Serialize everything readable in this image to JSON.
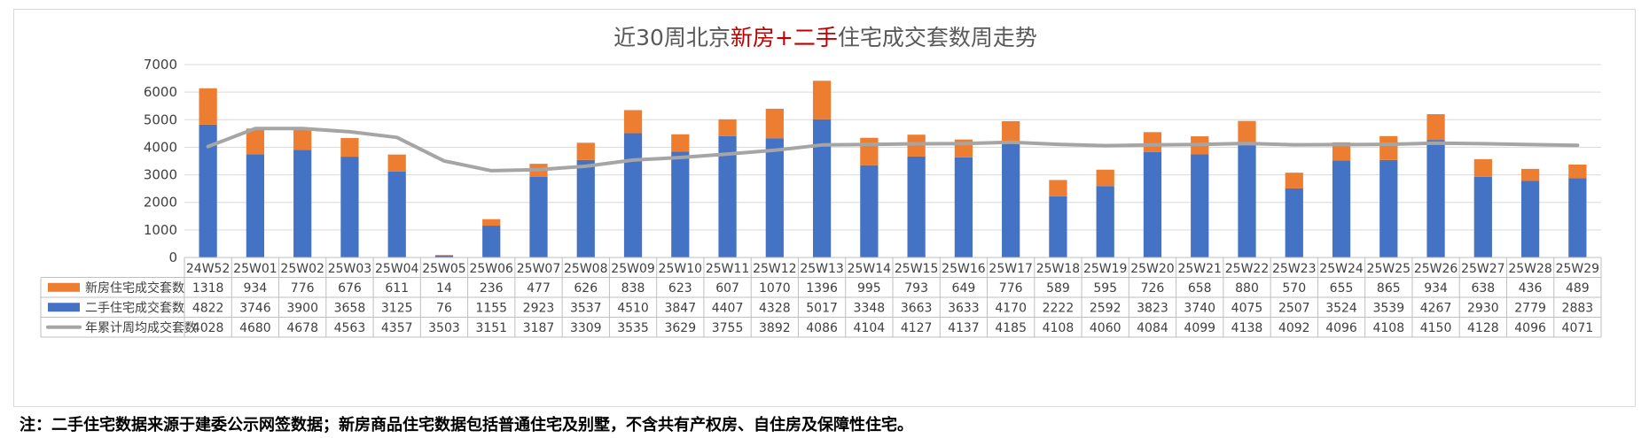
{
  "title": {
    "part1": "近30周北京",
    "part2": "新房",
    "part3": "+",
    "part4": "二手",
    "part5": "住宅成交套数周走势"
  },
  "footnote": "注：二手住宅数据来源于建委公示网签数据；新房商品住宅数据包括普通住宅及别墅，不含共有产权房、自住房及保障性住宅。",
  "colors": {
    "new_home": "#ed7d31",
    "second_hand": "#4472c4",
    "avg_line": "#a5a5a5",
    "title_accent": "#c00000"
  },
  "chart_data": {
    "type": "bar",
    "stacked": true,
    "categories": [
      "24W52",
      "25W01",
      "25W02",
      "25W03",
      "25W04",
      "25W05",
      "25W06",
      "25W07",
      "25W08",
      "25W09",
      "25W10",
      "25W11",
      "25W12",
      "25W13",
      "25W14",
      "25W15",
      "25W16",
      "25W17",
      "25W18",
      "25W19",
      "25W20",
      "25W21",
      "25W22",
      "25W23",
      "25W24",
      "25W25",
      "25W26",
      "25W27",
      "25W28",
      "25W29"
    ],
    "y_ticks": [
      "0",
      "1000",
      "2000",
      "3000",
      "4000",
      "5000",
      "6000",
      "7000"
    ],
    "ylim": [
      0,
      7000
    ],
    "grid": true,
    "series": [
      {
        "name": "新房住宅成交套数",
        "kind": "bar",
        "values": [
          1318,
          934,
          776,
          676,
          611,
          14,
          236,
          477,
          626,
          838,
          623,
          607,
          1070,
          1396,
          995,
          793,
          649,
          776,
          589,
          595,
          726,
          658,
          880,
          570,
          655,
          865,
          934,
          638,
          436,
          489
        ]
      },
      {
        "name": "二手住宅成交套数",
        "kind": "bar",
        "values": [
          4822,
          3746,
          3900,
          3658,
          3125,
          76,
          1155,
          2923,
          3537,
          4510,
          3847,
          4407,
          4328,
          5017,
          3348,
          3663,
          3633,
          4170,
          2222,
          2592,
          3823,
          3740,
          4075,
          2507,
          3524,
          3539,
          4267,
          2930,
          2779,
          2883
        ]
      },
      {
        "name": "年累计周均成交套数",
        "kind": "line",
        "values": [
          4028,
          4680,
          4678,
          4563,
          4357,
          3503,
          3151,
          3187,
          3309,
          3535,
          3629,
          3755,
          3892,
          4086,
          4104,
          4127,
          4137,
          4185,
          4108,
          4060,
          4084,
          4099,
          4138,
          4092,
          4096,
          4108,
          4150,
          4128,
          4096,
          4071
        ]
      }
    ]
  }
}
